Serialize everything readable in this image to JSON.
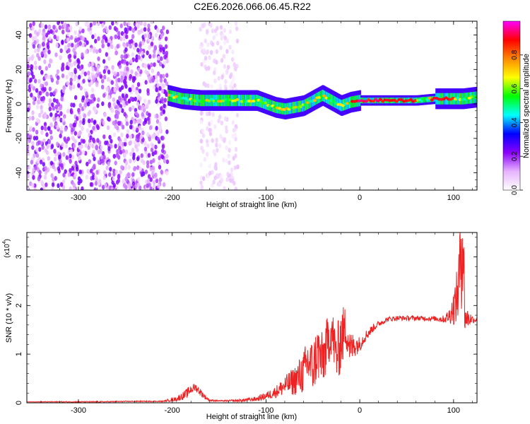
{
  "title": "C2E6.2026.066.06.45.R22",
  "chart_data": [
    {
      "type": "heatmap",
      "xlabel": "Height of straight line (km)",
      "ylabel": "Frequency (Hz)",
      "xlim": [
        -355,
        125
      ],
      "ylim": [
        -50,
        48
      ],
      "xticks": [
        -300,
        -200,
        -100,
        0,
        100
      ],
      "yticks": [
        -40,
        -20,
        0,
        20,
        40
      ],
      "grid": false,
      "colorbar": {
        "label": "Normalized spectral amplitude",
        "range": [
          0,
          1
        ],
        "ticks": [
          "0.0",
          "0.2",
          "0.4",
          "0.6",
          "0.8"
        ],
        "colormap": [
          "#ffffff",
          "#e6b3ff",
          "#8a00ff",
          "#0000ff",
          "#00ffff",
          "#00ff00",
          "#ffff00",
          "#ff8800",
          "#ff0000",
          "#ff00ff"
        ]
      },
      "regions": [
        {
          "x": [
            -355,
            -205
          ],
          "y": [
            -50,
            48
          ],
          "amplitude": [
            0.05,
            0.25
          ]
        },
        {
          "x": [
            -205,
            125
          ],
          "y": [
            -5,
            8
          ],
          "amplitude": [
            0.2,
            1.0
          ]
        },
        {
          "x": [
            -170,
            -130
          ],
          "y": [
            -50,
            48
          ],
          "amplitude": [
            0.02,
            0.1
          ]
        }
      ],
      "ridge": {
        "x": [
          -205,
          -190,
          -170,
          -150,
          -130,
          -110,
          -100,
          -90,
          -80,
          -70,
          -60,
          -50,
          -40,
          -30,
          -20,
          -10,
          0,
          20,
          40,
          60,
          80,
          100,
          110,
          125
        ],
        "freq": [
          5,
          3,
          2,
          2,
          2,
          2,
          0,
          -2,
          -3,
          -2,
          -1,
          2,
          5,
          2,
          -1,
          1,
          2,
          2,
          2,
          2,
          3,
          3,
          3,
          4
        ]
      }
    },
    {
      "type": "line",
      "xlabel": "Height of straight line (km)",
      "ylabel": "SNR (10 * v/v)",
      "yunit_label": "(x10",
      "yunit_exp": "4",
      "xlim": [
        -355,
        125
      ],
      "ylim": [
        0,
        3.5
      ],
      "xticks": [
        -300,
        -200,
        -100,
        0,
        100
      ],
      "yticks": [
        0,
        1,
        2,
        3
      ],
      "grid": false,
      "series": [
        {
          "color": "#ee2222",
          "x": [
            -355,
            -320,
            -280,
            -240,
            -210,
            -195,
            -185,
            -180,
            -175,
            -170,
            -165,
            -160,
            -150,
            -140,
            -125,
            -110,
            -100,
            -90,
            -80,
            -70,
            -60,
            -55,
            -50,
            -45,
            -40,
            -35,
            -30,
            -25,
            -20,
            -15,
            -10,
            -5,
            0,
            5,
            10,
            15,
            20,
            30,
            40,
            60,
            80,
            90,
            95,
            100,
            104,
            106,
            108,
            110,
            112,
            120,
            125
          ],
          "values": [
            0.02,
            0.02,
            0.02,
            0.03,
            0.03,
            0.08,
            0.18,
            0.28,
            0.32,
            0.22,
            0.12,
            0.05,
            0.04,
            0.04,
            0.05,
            0.08,
            0.14,
            0.22,
            0.35,
            0.45,
            0.62,
            0.85,
            0.72,
            1.05,
            0.85,
            1.2,
            1.5,
            0.95,
            1.3,
            1.55,
            1.1,
            1.2,
            1.2,
            1.35,
            1.45,
            1.55,
            1.62,
            1.72,
            1.74,
            1.74,
            1.73,
            1.72,
            1.78,
            1.95,
            2.2,
            2.5,
            3.3,
            3.5,
            1.75,
            1.72,
            1.7
          ],
          "amplitude": [
            0.0,
            0.01,
            0.01,
            0.01,
            0.01,
            0.05,
            0.1,
            0.1,
            0.08,
            0.08,
            0.05,
            0.02,
            0.01,
            0.02,
            0.03,
            0.05,
            0.08,
            0.12,
            0.2,
            0.3,
            0.45,
            0.55,
            0.55,
            0.6,
            0.6,
            0.55,
            0.5,
            0.55,
            0.7,
            0.45,
            0.35,
            0.25,
            0.15,
            0.12,
            0.1,
            0.08,
            0.06,
            0.05,
            0.05,
            0.05,
            0.05,
            0.08,
            0.15,
            0.35,
            0.6,
            0.9,
            1.4,
            1.6,
            0.3,
            0.08,
            0.06
          ]
        }
      ]
    }
  ]
}
